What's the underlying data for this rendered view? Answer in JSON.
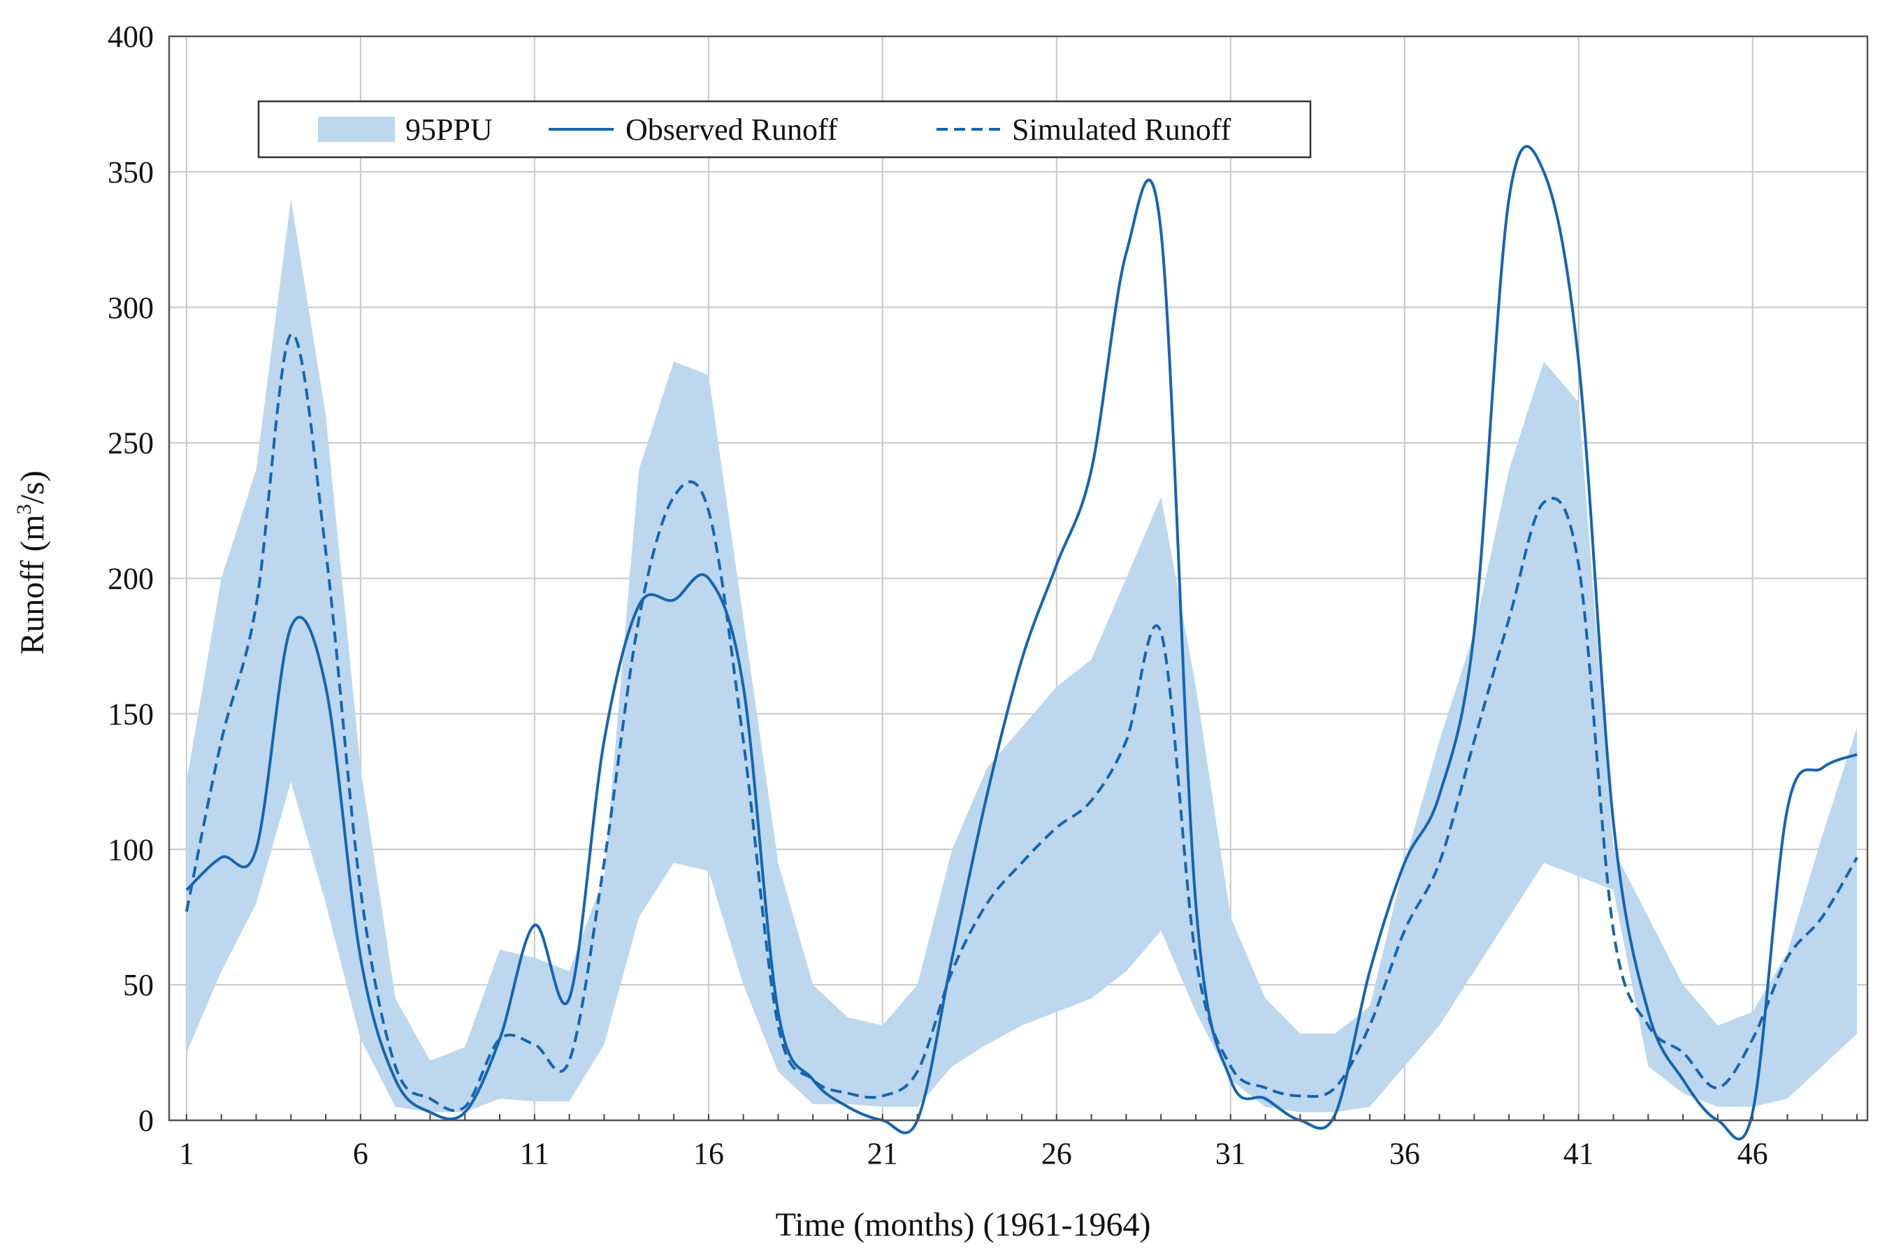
{
  "chart_data": {
    "type": "line",
    "title": "",
    "xlabel": "Time (months) (1961-1964)",
    "ylabel": "Runoff (m³/s)",
    "ylabel_main": "Runoff (m",
    "ylabel_sup": "3",
    "ylabel_tail": "/s)",
    "xlim": [
      0.5,
      49.3
    ],
    "ylim": [
      0,
      400
    ],
    "xticks": [
      1,
      6,
      11,
      16,
      21,
      26,
      31,
      36,
      41,
      46
    ],
    "yticks": [
      0,
      50,
      100,
      150,
      200,
      250,
      300,
      350,
      400
    ],
    "grid": true,
    "legend_position": "top-left",
    "colors": {
      "band": "#bcd7ee",
      "line": "#1565b0"
    },
    "x": [
      1,
      2,
      3,
      4,
      5,
      6,
      7,
      8,
      9,
      10,
      11,
      12,
      13,
      14,
      15,
      16,
      17,
      18,
      19,
      20,
      21,
      22,
      23,
      24,
      25,
      26,
      27,
      28,
      29,
      30,
      31,
      32,
      33,
      34,
      35,
      36,
      37,
      38,
      39,
      40,
      41,
      42,
      43,
      44,
      45,
      46,
      47,
      48,
      49
    ],
    "series": [
      {
        "name": "95PPU",
        "kind": "band",
        "lower": [
          25,
          55,
          80,
          125,
          80,
          30,
          5,
          3,
          3,
          8,
          7,
          7,
          28,
          75,
          95,
          92,
          50,
          18,
          6,
          6,
          5,
          5,
          20,
          28,
          35,
          40,
          45,
          55,
          70,
          40,
          15,
          5,
          3,
          3,
          5,
          20,
          35,
          55,
          75,
          95,
          90,
          85,
          20,
          10,
          5,
          5,
          8,
          20,
          32
        ],
        "upper": [
          125,
          200,
          240,
          340,
          260,
          130,
          45,
          22,
          27,
          63,
          60,
          55,
          90,
          240,
          280,
          275,
          185,
          95,
          50,
          38,
          35,
          50,
          100,
          130,
          145,
          160,
          170,
          200,
          230,
          160,
          75,
          45,
          32,
          32,
          42,
          95,
          140,
          180,
          240,
          280,
          265,
          100,
          75,
          50,
          35,
          40,
          62,
          105,
          145
        ]
      },
      {
        "name": "Observed Runoff",
        "kind": "line",
        "dash": "solid",
        "values": [
          85,
          97,
          100,
          182,
          160,
          60,
          15,
          3,
          3,
          30,
          72,
          45,
          140,
          190,
          192,
          200,
          160,
          40,
          15,
          5,
          0,
          0,
          60,
          120,
          170,
          205,
          240,
          320,
          328,
          80,
          15,
          8,
          0,
          2,
          55,
          95,
          120,
          180,
          340,
          350,
          280,
          110,
          40,
          15,
          0,
          3,
          115,
          130,
          135
        ]
      },
      {
        "name": "Simulated Runoff",
        "kind": "line",
        "dash": "dashed",
        "values": [
          77,
          140,
          190,
          290,
          210,
          85,
          20,
          8,
          5,
          30,
          28,
          22,
          95,
          185,
          230,
          225,
          140,
          35,
          15,
          10,
          9,
          18,
          55,
          80,
          95,
          108,
          118,
          140,
          180,
          60,
          20,
          12,
          9,
          12,
          35,
          70,
          95,
          140,
          185,
          228,
          205,
          70,
          35,
          25,
          12,
          30,
          60,
          75,
          97
        ]
      }
    ]
  }
}
